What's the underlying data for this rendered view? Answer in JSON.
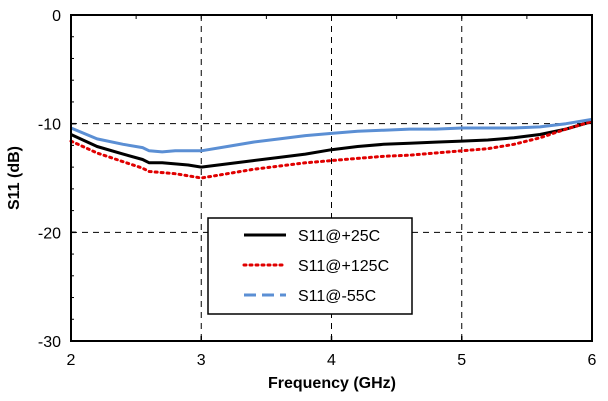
{
  "chart_data": {
    "type": "line",
    "title": "",
    "xlabel": "Frequency (GHz)",
    "ylabel": "S11 (dB)",
    "xlim": [
      2,
      6
    ],
    "ylim": [
      -30,
      0
    ],
    "xticks": [
      2,
      3,
      4,
      5,
      6
    ],
    "yticks": [
      0,
      -10,
      -20,
      -30
    ],
    "xtick_labels": [
      "2",
      "3",
      "4",
      "5",
      "6"
    ],
    "ytick_labels": [
      "0",
      "-10",
      "-20",
      "-30"
    ],
    "grid": true,
    "grid_style": "dashed",
    "legend_position": "bottom-center",
    "series": [
      {
        "name": "S11@+25C",
        "color": "#000000",
        "line_style": "solid",
        "x": [
          2.0,
          2.2,
          2.4,
          2.55,
          2.6,
          2.7,
          2.8,
          2.9,
          3.0,
          3.2,
          3.4,
          3.6,
          3.8,
          4.0,
          4.2,
          4.4,
          4.6,
          4.8,
          5.0,
          5.2,
          5.4,
          5.6,
          5.8,
          6.0
        ],
        "y": [
          -11.0,
          -12.1,
          -12.8,
          -13.3,
          -13.6,
          -13.6,
          -13.7,
          -13.8,
          -14.0,
          -13.7,
          -13.4,
          -13.1,
          -12.8,
          -12.4,
          -12.1,
          -11.9,
          -11.8,
          -11.7,
          -11.6,
          -11.5,
          -11.3,
          -11.0,
          -10.5,
          -9.8
        ]
      },
      {
        "name": "S11@+125C",
        "color": "#e00000",
        "line_style": "dotted",
        "x": [
          2.0,
          2.2,
          2.4,
          2.55,
          2.6,
          2.7,
          2.8,
          2.9,
          3.0,
          3.2,
          3.4,
          3.6,
          3.8,
          4.0,
          4.2,
          4.4,
          4.6,
          4.8,
          5.0,
          5.2,
          5.4,
          5.6,
          5.8,
          6.0
        ],
        "y": [
          -11.6,
          -12.7,
          -13.5,
          -14.1,
          -14.4,
          -14.5,
          -14.6,
          -14.8,
          -15.0,
          -14.6,
          -14.2,
          -13.9,
          -13.6,
          -13.4,
          -13.2,
          -13.0,
          -12.9,
          -12.7,
          -12.5,
          -12.3,
          -11.9,
          -11.3,
          -10.5,
          -9.8
        ]
      },
      {
        "name": "S11@-55C",
        "color": "#5b8fd4",
        "line_style": "dashed",
        "x": [
          2.0,
          2.2,
          2.4,
          2.55,
          2.6,
          2.7,
          2.8,
          2.9,
          3.0,
          3.2,
          3.4,
          3.6,
          3.8,
          4.0,
          4.2,
          4.4,
          4.6,
          4.8,
          5.0,
          5.2,
          5.4,
          5.6,
          5.8,
          6.0
        ],
        "y": [
          -10.4,
          -11.4,
          -11.9,
          -12.2,
          -12.5,
          -12.6,
          -12.5,
          -12.5,
          -12.5,
          -12.1,
          -11.7,
          -11.4,
          -11.1,
          -10.9,
          -10.7,
          -10.6,
          -10.5,
          -10.5,
          -10.4,
          -10.4,
          -10.4,
          -10.3,
          -10.0,
          -9.6
        ]
      }
    ]
  }
}
